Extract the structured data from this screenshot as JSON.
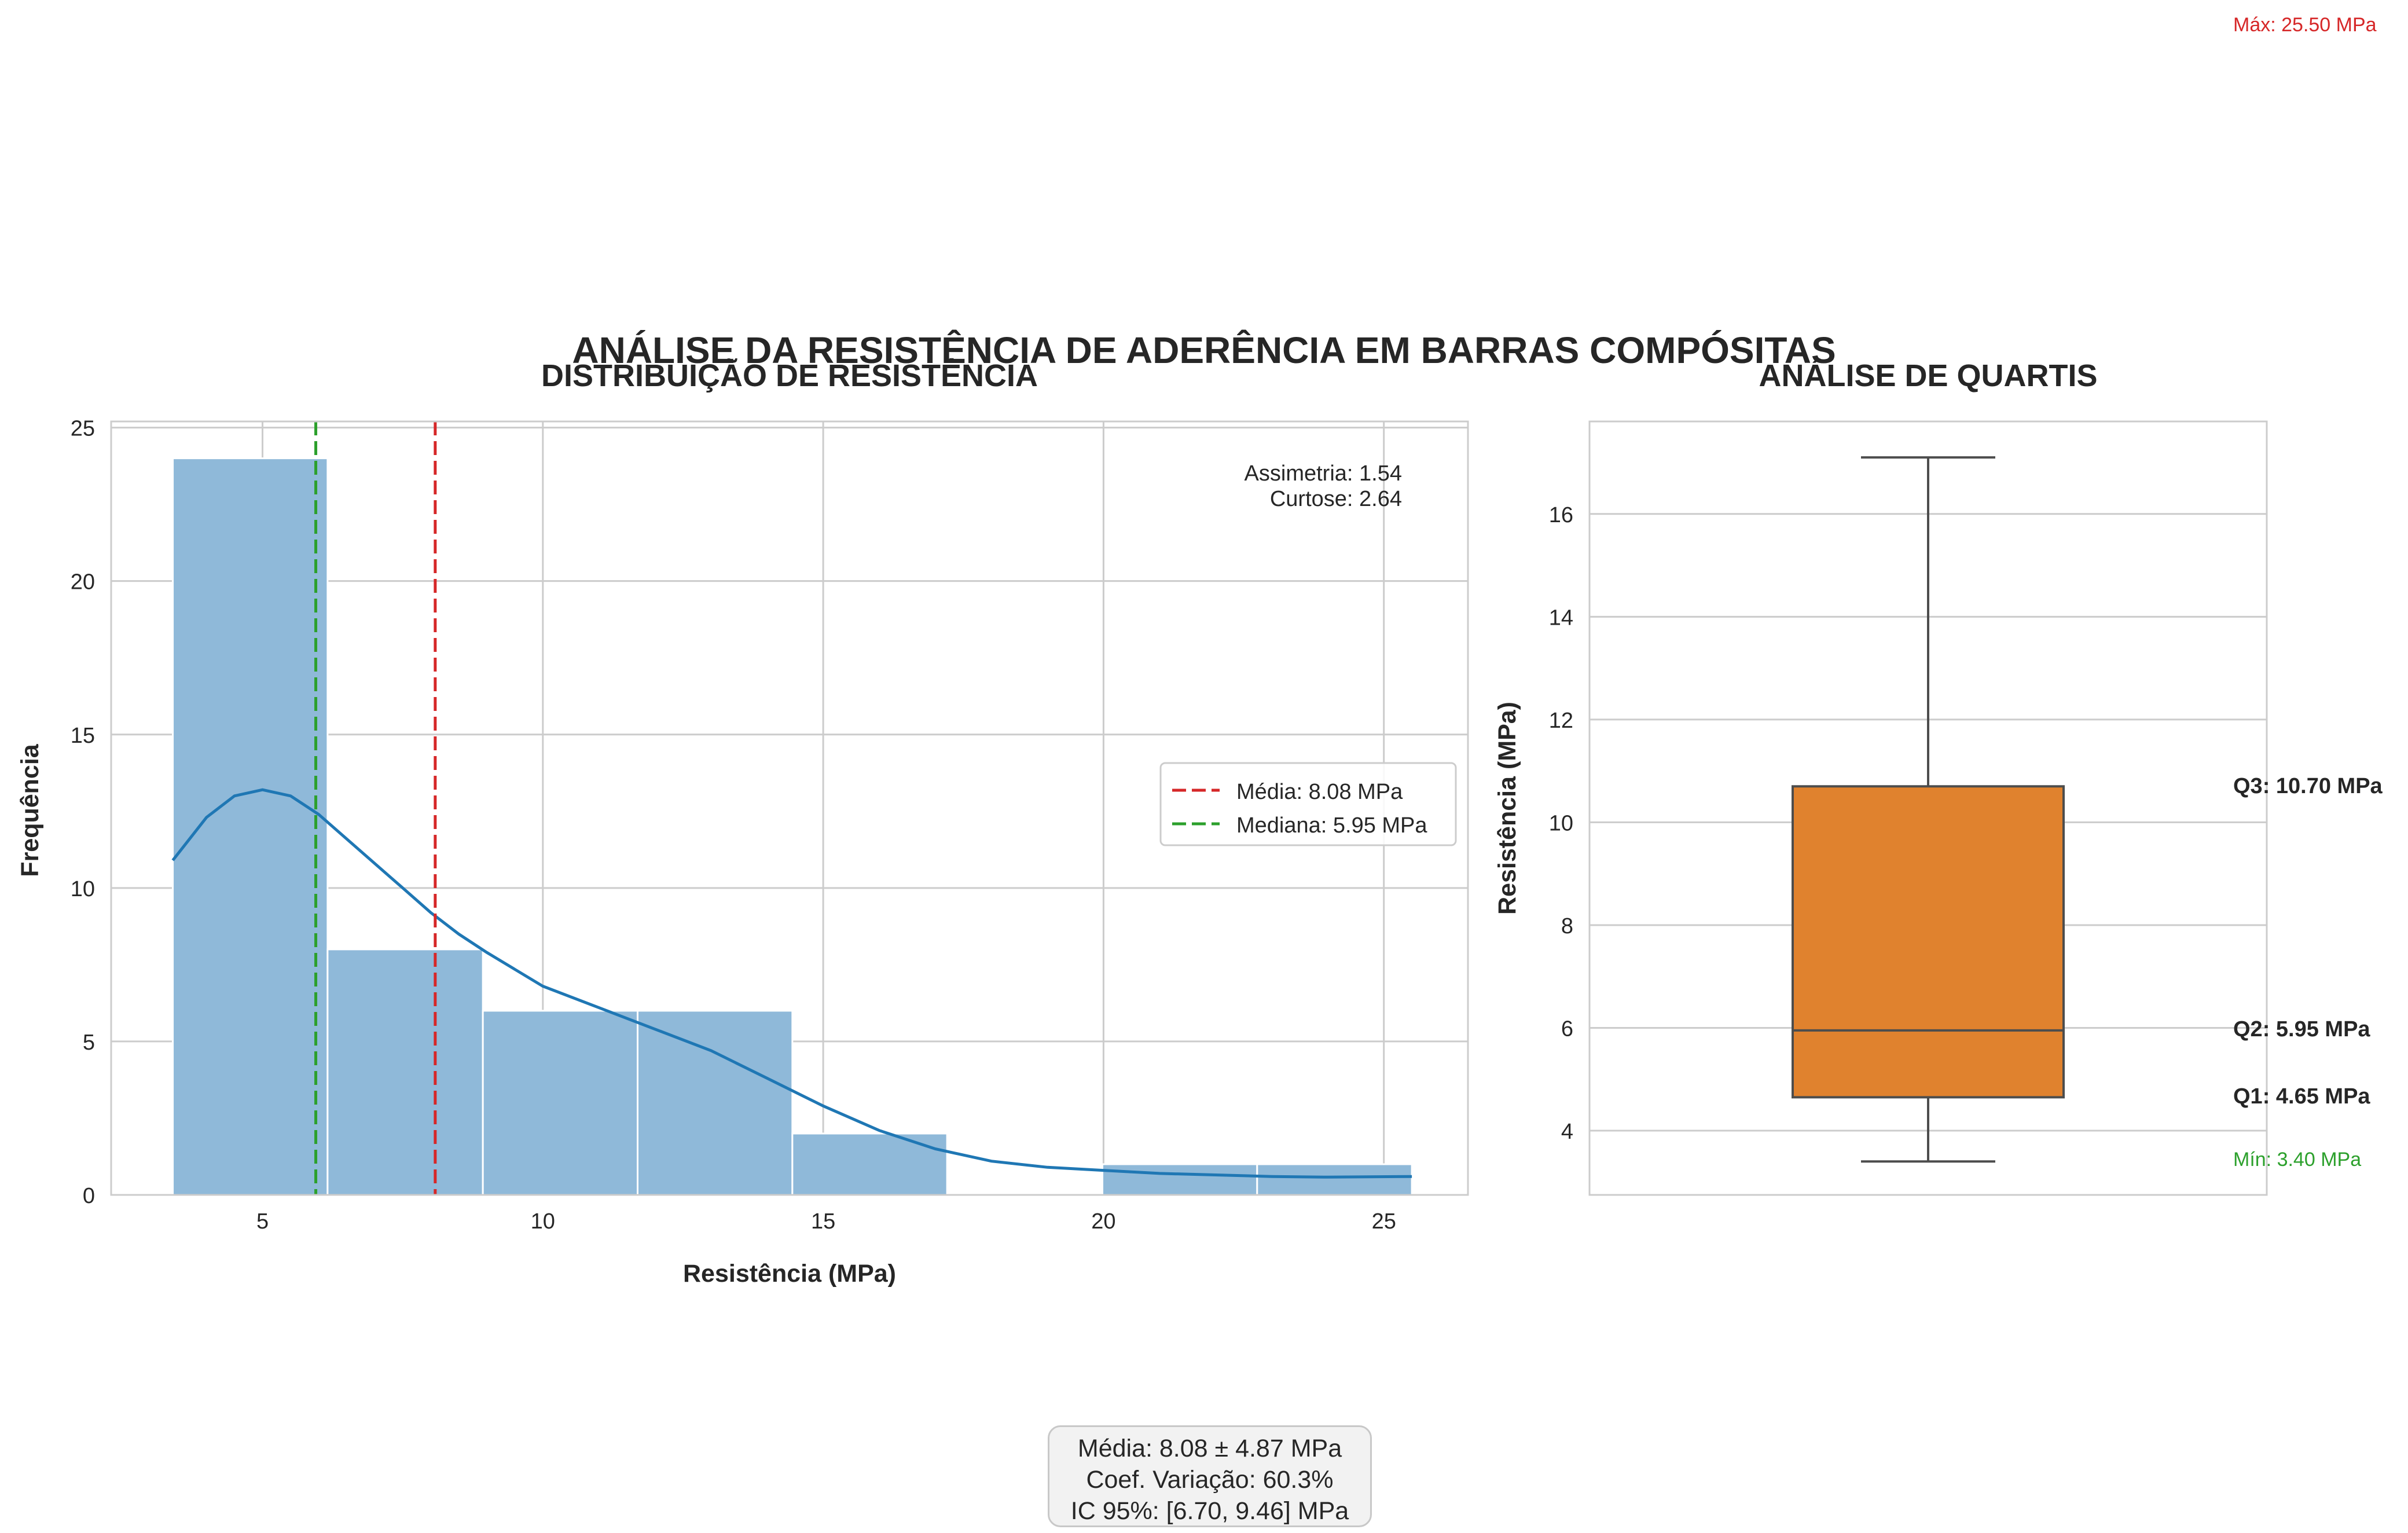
{
  "figure": {
    "suptitle": "ANÁLISE DA RESISTÊNCIA DE ADERÊNCIA EM BARRAS COMPÓSITAS",
    "stats_box": {
      "line1": "Média: 8.08 ± 4.87 MPa",
      "line2": "Coef. Variação: 60.3%",
      "line3": "IC 95%: [6.70, 9.46] MPa"
    }
  },
  "colors": {
    "hist_fill": "#8fb9d9",
    "hist_edge": "#ffffff",
    "kde_line": "#1f77b4",
    "mean_line": "#d62728",
    "median_line": "#2ca02c",
    "box_fill": "#e0822e",
    "box_edge": "#4d4d4d",
    "grid": "#cccccc",
    "max_text": "#d62728",
    "min_text": "#2ca02c"
  },
  "chart_data": [
    {
      "type": "bar",
      "subtype": "histogram",
      "title": "DISTRIBUIÇÃO DE RESISTÊNCIA",
      "xlabel": "Resistência (MPa)",
      "ylabel": "Frequência",
      "xlim": [
        2.3,
        26.5
      ],
      "ylim": [
        0,
        25.2
      ],
      "xticks": [
        5,
        10,
        15,
        20,
        25
      ],
      "yticks": [
        0,
        5,
        10,
        15,
        20,
        25
      ],
      "grid": true,
      "bins": [
        {
          "x0": 3.4,
          "x1": 6.16,
          "count": 24
        },
        {
          "x0": 6.16,
          "x1": 8.93,
          "count": 8
        },
        {
          "x0": 8.93,
          "x1": 11.69,
          "count": 6
        },
        {
          "x0": 11.69,
          "x1": 14.45,
          "count": 6
        },
        {
          "x0": 14.45,
          "x1": 17.21,
          "count": 2
        },
        {
          "x0": 17.21,
          "x1": 19.98,
          "count": 0
        },
        {
          "x0": 19.98,
          "x1": 22.74,
          "count": 1
        },
        {
          "x0": 22.74,
          "x1": 25.5,
          "count": 1
        }
      ],
      "kde": {
        "x": [
          3.4,
          4.0,
          4.5,
          5.0,
          5.5,
          6.0,
          6.5,
          7.0,
          7.5,
          8.0,
          8.5,
          9.0,
          10.0,
          11.0,
          12.0,
          13.0,
          14.0,
          15.0,
          16.0,
          17.0,
          18.0,
          19.0,
          20.0,
          21.0,
          22.0,
          23.0,
          24.0,
          25.5
        ],
        "y": [
          10.9,
          12.3,
          13.0,
          13.2,
          13.0,
          12.4,
          11.6,
          10.8,
          10.0,
          9.2,
          8.5,
          7.9,
          6.8,
          6.1,
          5.4,
          4.7,
          3.8,
          2.9,
          2.1,
          1.5,
          1.1,
          0.9,
          0.8,
          0.7,
          0.65,
          0.6,
          0.58,
          0.6
        ]
      },
      "reference_lines": [
        {
          "label": "Média: 8.08 MPa",
          "x": 8.08,
          "color": "#d62728"
        },
        {
          "label": "Mediana: 5.95 MPa",
          "x": 5.95,
          "color": "#2ca02c"
        }
      ],
      "legend_placement": "center-right",
      "annotations": [
        "Assimetria: 1.54",
        "Curtose: 2.64"
      ]
    },
    {
      "type": "box",
      "title": "ANÁLISE DE QUARTIS",
      "xlabel": "",
      "ylabel": "Resistência (MPa)",
      "ylim": [
        2.75,
        17.8
      ],
      "yticks": [
        4,
        6,
        8,
        10,
        12,
        14,
        16
      ],
      "grid": true,
      "whisker_low": 3.4,
      "q1": 4.65,
      "median": 5.95,
      "q3": 10.7,
      "whisker_high": 17.1,
      "annotations": {
        "max": "Máx: 25.50 MPa",
        "q3": "Q3: 10.70 MPa",
        "q2": "Q2: 5.95 MPa",
        "q1": "Q1: 4.65 MPa",
        "min": "Mín: 3.40 MPa"
      }
    }
  ]
}
